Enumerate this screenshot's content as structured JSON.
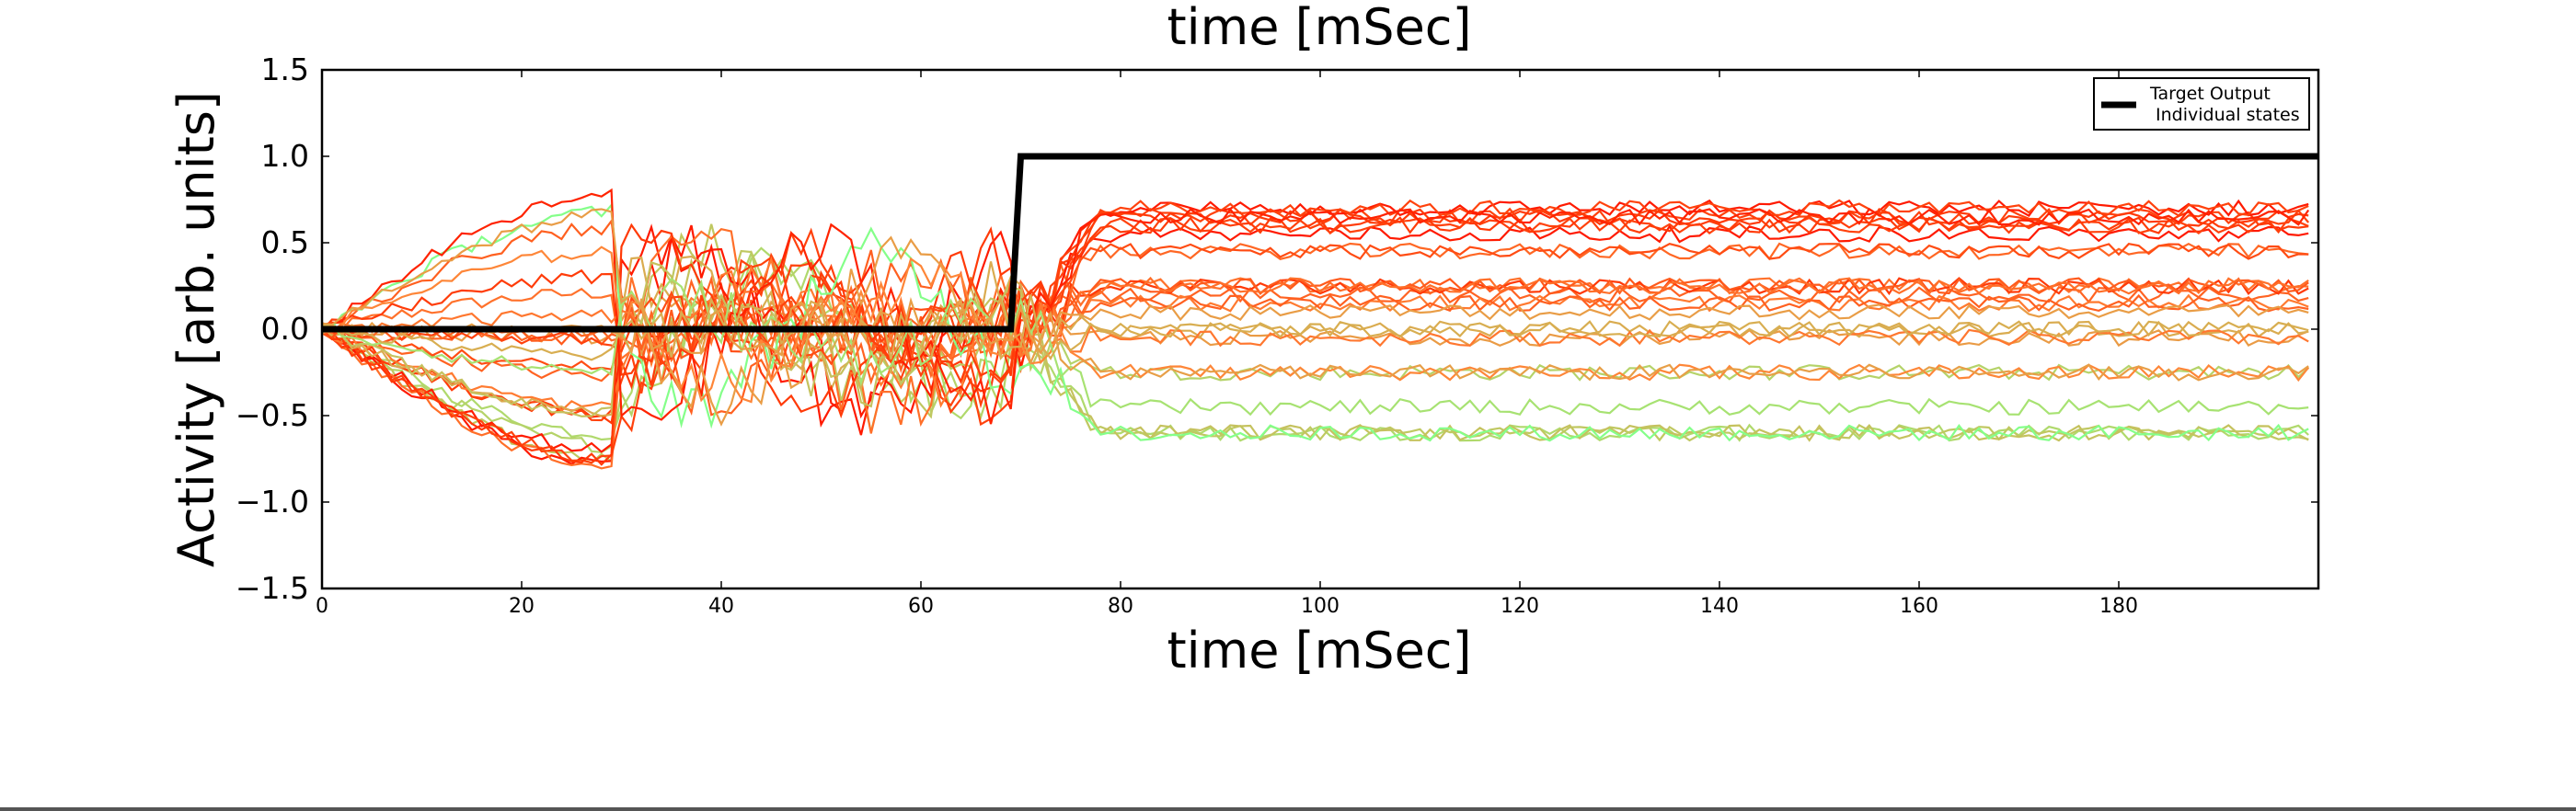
{
  "chart_data": {
    "type": "line",
    "title": "time [mSec]",
    "xlabel": "time [mSec]",
    "ylabel": "Activity [arb. units]",
    "xlim": [
      0,
      200
    ],
    "ylim": [
      -1.5,
      1.5
    ],
    "xticks": [
      "0",
      "20",
      "40",
      "60",
      "80",
      "100",
      "120",
      "140",
      "160",
      "180"
    ],
    "yticks": [
      "1.5",
      "1.0",
      "0.5",
      "0.0",
      "−0.5",
      "−1.0",
      "−1.5"
    ],
    "grid": false,
    "legend_position": "top-right",
    "legend": [
      "Target Output",
      "Individual states"
    ],
    "target": {
      "name": "Target Output",
      "color": "#000000",
      "points": [
        [
          0,
          0.0
        ],
        [
          69,
          0.0
        ],
        [
          70,
          1.0
        ],
        [
          200,
          1.0
        ]
      ]
    },
    "states": {
      "name": "Individual states",
      "colormap": "rainbow",
      "count": 30,
      "transient_end": 70,
      "final_levels": [
        -0.6,
        -0.45,
        -0.3,
        -0.25,
        -0.05,
        0.0,
        0.1,
        0.15,
        0.2,
        0.25,
        0.45,
        0.55,
        0.6,
        0.65,
        0.7
      ]
    }
  }
}
